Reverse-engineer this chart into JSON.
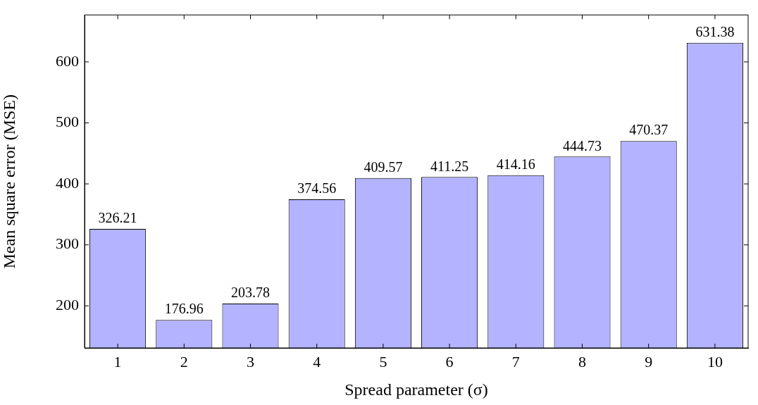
{
  "chart_data": {
    "type": "bar",
    "xlabel": "Spread parameter (σ)",
    "ylabel": "Mean square error (MSE)",
    "categories": [
      "1",
      "2",
      "3",
      "4",
      "5",
      "6",
      "7",
      "8",
      "9",
      "10"
    ],
    "values": [
      326.21,
      176.96,
      203.78,
      374.56,
      409.57,
      411.25,
      414.16,
      444.73,
      470.37,
      631.38
    ],
    "color": "#b3b3ff",
    "ylim": [
      131,
      677
    ],
    "yticks": [
      200,
      300,
      400,
      500,
      600
    ],
    "grid": false,
    "legend": false,
    "data_labels": true
  }
}
